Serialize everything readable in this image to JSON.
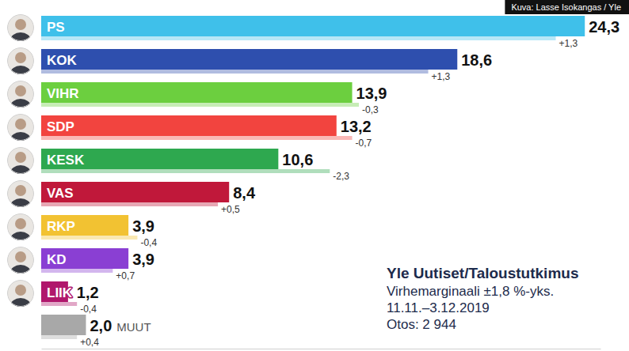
{
  "chart_data": {
    "type": "bar",
    "orientation": "horizontal",
    "title": "Yle Uutiset/Taloustutkimus",
    "notes": [
      "Virhemarginaali ±1,8 %-yks.",
      "11.11.–3.12.2019",
      "Otos: 2 944"
    ],
    "credit": "Kuva: Lasse Isokangas / Yle",
    "categories": [
      "PS",
      "KOK",
      "VIHR",
      "SDP",
      "KESK",
      "VAS",
      "RKP",
      "KD",
      "LIIK",
      "MUUT"
    ],
    "values": [
      24.3,
      18.6,
      13.9,
      13.2,
      10.6,
      8.4,
      3.9,
      3.9,
      1.2,
      2.0
    ],
    "value_labels": [
      "24,3",
      "18,6",
      "13,9",
      "13,2",
      "10,6",
      "8,4",
      "3,9",
      "3,9",
      "1,2",
      "2,0"
    ],
    "previous_values": [
      23.0,
      17.3,
      14.2,
      13.9,
      12.9,
      7.9,
      4.3,
      3.2,
      1.6,
      1.6
    ],
    "change_labels": [
      "+1,3",
      "+1,3",
      "-0,3",
      "-0,7",
      "-2,3",
      "+0,5",
      "-0,4",
      "+0,7",
      "-0,4",
      "+0,4"
    ],
    "colors": [
      "#3fc0ea",
      "#2e4fae",
      "#6ccf3f",
      "#f2443f",
      "#2ea84f",
      "#c0183a",
      "#f2c232",
      "#8a3fd3",
      "#b0176c",
      "#a8a8a8"
    ],
    "xlim": [
      0,
      25
    ],
    "data_labels": true,
    "tick_labels": false,
    "grid": false
  }
}
